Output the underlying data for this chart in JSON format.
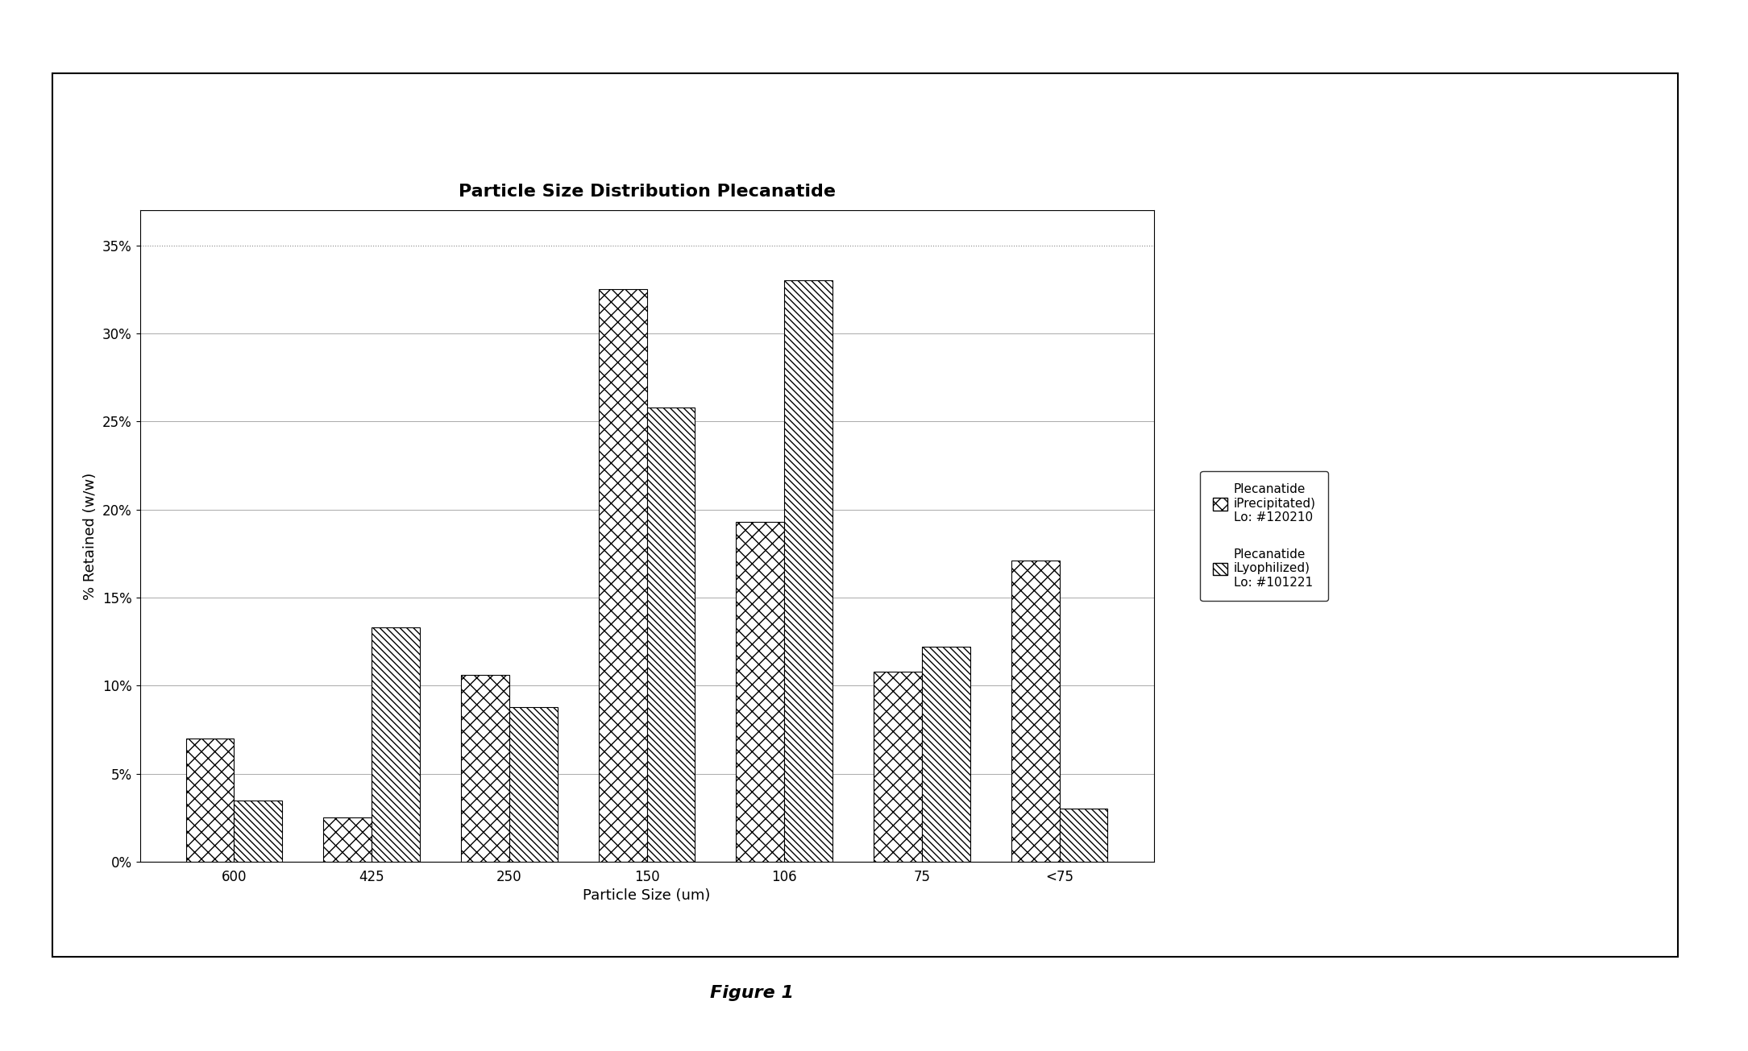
{
  "title": "Particle Size Distribution Plecanatide",
  "xlabel": "Particle Size (um)",
  "ylabel": "% Retained (w/w)",
  "categories": [
    "600",
    "425",
    "250",
    "150",
    "106",
    "75",
    "<75"
  ],
  "series1_label": "Plecanatide\niPrecipitated)\nLo: #120210",
  "series2_label": "Plecanatide\niLyophilized)\nLo: #101221",
  "series1_values": [
    0.07,
    0.025,
    0.106,
    0.325,
    0.193,
    0.108,
    0.171
  ],
  "series2_values": [
    0.035,
    0.133,
    0.088,
    0.258,
    0.33,
    0.122,
    0.03
  ],
  "ylim": [
    0,
    0.37
  ],
  "yticks": [
    0.0,
    0.05,
    0.1,
    0.15,
    0.2,
    0.25,
    0.3,
    0.35
  ],
  "figure_label": "Figure 1",
  "bar_width": 0.35,
  "background_color": "#ffffff",
  "title_fontsize": 16,
  "axis_label_fontsize": 13,
  "tick_fontsize": 12,
  "legend_fontsize": 11,
  "figure_label_fontsize": 16
}
